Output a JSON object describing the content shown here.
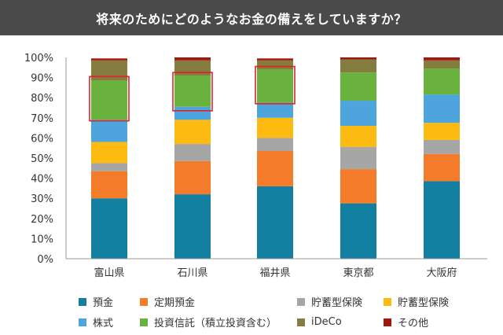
{
  "header": {
    "title": "将来のためにどのようなお金の備えをしていますか？"
  },
  "chart_data": {
    "type": "bar",
    "stacked": true,
    "categories": [
      "富山県",
      "石川県",
      "福井県",
      "東京都",
      "大阪府"
    ],
    "y_ticks": [
      "0%",
      "10%",
      "20%",
      "30%",
      "40%",
      "50%",
      "60%",
      "70%",
      "80%",
      "90%",
      "100%"
    ],
    "ylim": [
      0,
      100
    ],
    "grid": false,
    "legend_position": "bottom",
    "series": [
      {
        "name": "預金",
        "color": "#127fa0",
        "values": [
          30,
          32,
          36,
          27.5,
          38.5
        ]
      },
      {
        "name": "定期預金",
        "color": "#f47b2a",
        "values": [
          13.5,
          16.5,
          17.5,
          17,
          13.5
        ]
      },
      {
        "name": "貯蓄型保険",
        "color": "#a6a6a6",
        "values": [
          4,
          8.5,
          6.5,
          11,
          7
        ]
      },
      {
        "name": "貯蓄型保険",
        "color": "#fdbb11",
        "values": [
          10.5,
          12,
          10,
          10.5,
          8.5
        ]
      },
      {
        "name": "株式",
        "color": "#4ea4dd",
        "values": [
          11,
          6.5,
          7.5,
          12.5,
          14
        ]
      },
      {
        "name": "投資信託（積立投資含む）",
        "color": "#6ab23e",
        "values": [
          19.5,
          15.5,
          16.5,
          14,
          13
        ]
      },
      {
        "name": "iDeCo",
        "color": "#857d3f",
        "values": [
          10,
          7.5,
          4.5,
          6.5,
          4
        ]
      },
      {
        "name": "その他",
        "color": "#a5170e",
        "values": [
          1,
          1.5,
          1,
          1,
          1.5
        ]
      }
    ],
    "highlight_boxes": [
      {
        "category": "富山県",
        "y_range": [
          68.5,
          90.5
        ]
      },
      {
        "category": "石川県",
        "y_range": [
          73.5,
          92.5
        ]
      },
      {
        "category": "福井県",
        "y_range": [
          77,
          95.5
        ]
      }
    ],
    "highlight_color": "#e0202a"
  }
}
